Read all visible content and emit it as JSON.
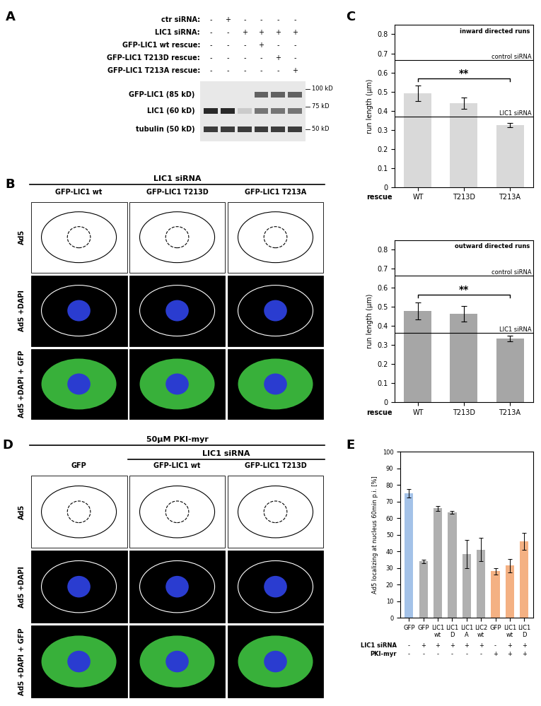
{
  "panel_labels": [
    "A",
    "B",
    "C",
    "D",
    "E"
  ],
  "panel_A": {
    "conditions": [
      {
        "label": "ctr siRNA:",
        "signs": [
          "-",
          "+",
          "-",
          "-",
          "-",
          "-"
        ]
      },
      {
        "label": "LIC1 siRNA:",
        "signs": [
          "-",
          "-",
          "+",
          "+",
          "+",
          "+"
        ]
      },
      {
        "label": "GFP-LIC1 wt rescue:",
        "signs": [
          "-",
          "-",
          "-",
          "+",
          "-",
          "-"
        ]
      },
      {
        "label": "GFP-LIC1 T213D rescue:",
        "signs": [
          "-",
          "-",
          "-",
          "-",
          "+",
          "-"
        ]
      },
      {
        "label": "GFP-LIC1 T213A rescue:",
        "signs": [
          "-",
          "-",
          "-",
          "-",
          "-",
          "+"
        ]
      }
    ],
    "bands": [
      {
        "label": "GFP-LIC1 (85 kD)",
        "intensity": [
          0,
          0,
          0,
          0.7,
          0.7,
          0.7
        ]
      },
      {
        "label": "LIC1 (60 kD)",
        "intensity": [
          1,
          1,
          0.15,
          0.6,
          0.6,
          0.6
        ]
      },
      {
        "label": "tubulin (50 kD)",
        "intensity": [
          0.9,
          0.9,
          0.9,
          0.9,
          0.9,
          0.9
        ]
      }
    ],
    "markers": [
      "100 kD",
      "75 kD",
      "50 kD"
    ]
  },
  "panel_B": {
    "header": "LIC1 siRNA",
    "columns": [
      "GFP-LIC1 wt",
      "GFP-LIC1 T213D",
      "GFP-LIC1 T213A"
    ],
    "rows": [
      "Ad5",
      "Ad5 +DAPI",
      "Ad5 +DAPI + GFP"
    ]
  },
  "panel_D": {
    "header": "50µM PKI-myr",
    "subheader": "LIC1 siRNA",
    "columns": [
      "GFP",
      "GFP-LIC1 wt",
      "GFP-LIC1 T213D"
    ],
    "rows": [
      "Ad5",
      "Ad5 +DAPI",
      "Ad5 +DAPI + GFP"
    ]
  },
  "chart_data": [
    {
      "type": "bar",
      "title": "inward directed runs",
      "categories": [
        "WT",
        "T213D",
        "T213A"
      ],
      "values": [
        0.49,
        0.44,
        0.325
      ],
      "errors": [
        0.04,
        0.03,
        0.01
      ],
      "color": "#d9d9d9",
      "x_label": "rescue",
      "y_label": "run length (µm)",
      "ylim": [
        0,
        0.85
      ],
      "yticks": [
        0,
        0.1,
        0.2,
        0.3,
        0.4,
        0.5,
        0.6,
        0.7,
        0.8
      ],
      "reference_lines": [
        {
          "label": "control siRNA",
          "value": 0.665
        },
        {
          "label": "LIC1 siRNA",
          "value": 0.37
        }
      ],
      "annotations": [
        {
          "text": "**",
          "between": [
            "WT",
            "T213A"
          ]
        }
      ]
    },
    {
      "type": "bar",
      "title": "outward directed runs",
      "categories": [
        "WT",
        "T213D",
        "T213A"
      ],
      "values": [
        0.48,
        0.465,
        0.335
      ],
      "errors": [
        0.045,
        0.04,
        0.015
      ],
      "color": "#a6a6a6",
      "x_label": "rescue",
      "y_label": "run length (µm)",
      "ylim": [
        0,
        0.85
      ],
      "yticks": [
        0,
        0.1,
        0.2,
        0.3,
        0.4,
        0.5,
        0.6,
        0.7,
        0.8
      ],
      "reference_lines": [
        {
          "label": "control siRNA",
          "value": 0.665
        },
        {
          "label": "LIC1 siRNA",
          "value": 0.365
        }
      ],
      "annotations": [
        {
          "text": "**",
          "between": [
            "WT",
            "T213A"
          ]
        }
      ]
    },
    {
      "type": "bar",
      "categories": [
        "GFP",
        "GFP",
        "LIC1\nwt",
        "LIC1\nD",
        "LIC1\nA",
        "LIC2\nwt",
        "GFP",
        "LIC1\nwt",
        "LIC1\nD"
      ],
      "values": [
        75,
        34,
        66,
        63.5,
        38.5,
        41,
        28,
        31.5,
        46
      ],
      "errors": [
        2.5,
        1,
        1.5,
        1,
        8.5,
        7,
        2,
        4,
        5
      ],
      "colors": [
        "#a4c2e8",
        "#b0b0b0",
        "#b0b0b0",
        "#b0b0b0",
        "#b0b0b0",
        "#b0b0b0",
        "#f4b183",
        "#f4b183",
        "#f4b183"
      ],
      "y_label": "Ad5 localizing at nucleus 60min p.i. [%]",
      "ylim": [
        0,
        100
      ],
      "yticks": [
        0,
        10,
        20,
        30,
        40,
        50,
        60,
        70,
        80,
        90,
        100
      ],
      "condition_rows": [
        {
          "label": "LIC1 siRNA",
          "signs": [
            "-",
            "+",
            "+",
            "+",
            "+",
            "+",
            "-",
            "+",
            "+"
          ]
        },
        {
          "label": "PKI-myr",
          "signs": [
            "-",
            "-",
            "-",
            "-",
            "-",
            "-",
            "+",
            "+",
            "+"
          ]
        }
      ]
    }
  ]
}
